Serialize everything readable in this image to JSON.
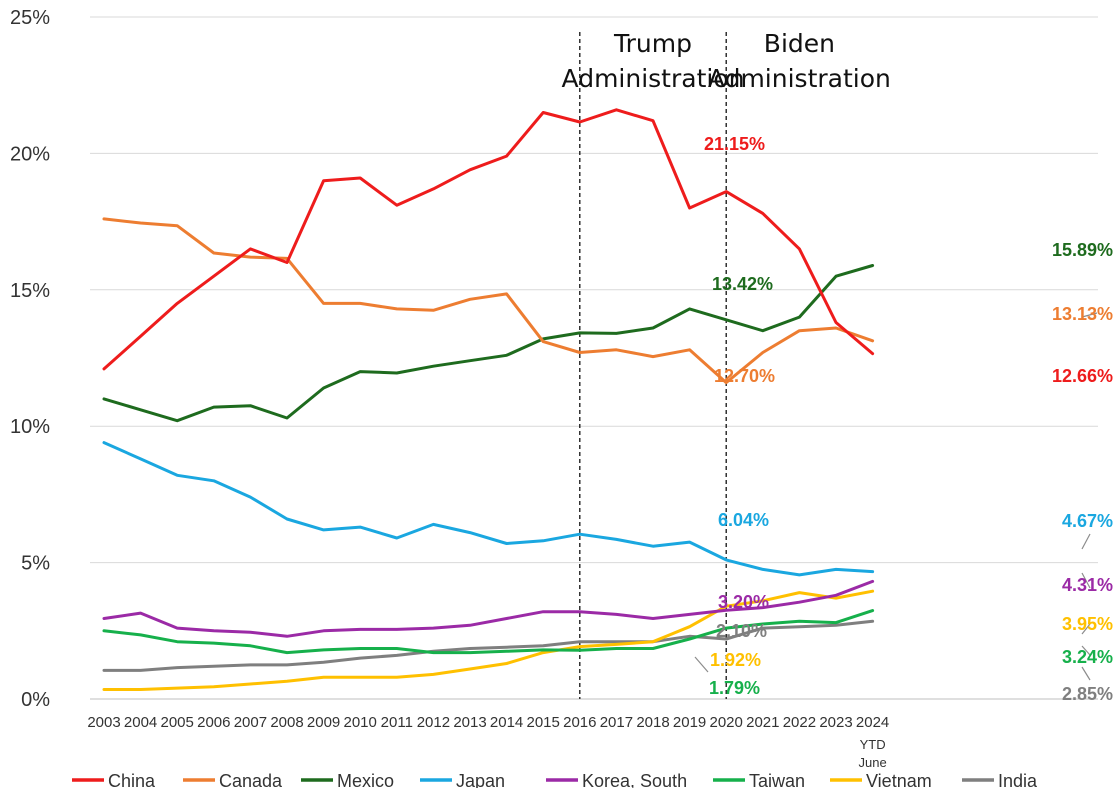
{
  "chart_data": {
    "type": "line",
    "title": "",
    "xlabel": "",
    "ylabel": "",
    "ylim": [
      0,
      25
    ],
    "grid": "horizontal",
    "legend_position": "bottom",
    "y_ticks": [
      "0%",
      "5%",
      "10%",
      "15%",
      "20%",
      "25%"
    ],
    "y_tick_values": [
      0,
      5,
      10,
      15,
      20,
      25
    ],
    "categories": [
      "2003",
      "2004",
      "2005",
      "2006",
      "2007",
      "2008",
      "2009",
      "2010",
      "2011",
      "2012",
      "2013",
      "2014",
      "2015",
      "2016",
      "2017",
      "2018",
      "2019",
      "2020",
      "2021",
      "2022",
      "2023",
      "2024"
    ],
    "last_category_sub": [
      "YTD",
      "June"
    ],
    "series": [
      {
        "name": "China",
        "color": "#ee1c1c",
        "values": [
          12.1,
          13.3,
          14.5,
          15.5,
          16.5,
          16.0,
          19.0,
          19.1,
          18.1,
          18.7,
          19.4,
          19.9,
          21.5,
          21.15,
          21.6,
          21.2,
          18.0,
          18.6,
          17.8,
          16.5,
          13.8,
          12.66
        ]
      },
      {
        "name": "Canada",
        "color": "#ed7d31",
        "values": [
          17.6,
          17.45,
          17.35,
          16.35,
          16.2,
          16.15,
          14.5,
          14.5,
          14.3,
          14.25,
          14.65,
          14.85,
          13.1,
          12.7,
          12.8,
          12.55,
          12.8,
          11.6,
          12.7,
          13.5,
          13.6,
          13.13
        ]
      },
      {
        "name": "Mexico",
        "color": "#1e6b1e",
        "values": [
          11.0,
          10.6,
          10.2,
          10.7,
          10.75,
          10.3,
          11.4,
          12.0,
          11.95,
          12.2,
          12.4,
          12.6,
          13.2,
          13.42,
          13.4,
          13.6,
          14.3,
          13.9,
          13.5,
          14.0,
          15.5,
          15.89
        ]
      },
      {
        "name": "Japan",
        "color": "#1aa7e0",
        "values": [
          9.4,
          8.8,
          8.2,
          8.0,
          7.4,
          6.6,
          6.2,
          6.3,
          5.9,
          6.4,
          6.1,
          5.7,
          5.8,
          6.04,
          5.85,
          5.6,
          5.75,
          5.1,
          4.75,
          4.55,
          4.75,
          4.67
        ]
      },
      {
        "name": "Korea, South",
        "color": "#9b2aa6",
        "values": [
          2.95,
          3.15,
          2.6,
          2.5,
          2.45,
          2.3,
          2.5,
          2.55,
          2.55,
          2.6,
          2.7,
          2.95,
          3.2,
          3.2,
          3.1,
          2.95,
          3.1,
          3.25,
          3.35,
          3.55,
          3.8,
          4.31
        ]
      },
      {
        "name": "Taiwan",
        "color": "#16b04b",
        "values": [
          2.5,
          2.35,
          2.1,
          2.05,
          1.95,
          1.7,
          1.8,
          1.85,
          1.85,
          1.7,
          1.7,
          1.75,
          1.8,
          1.79,
          1.85,
          1.85,
          2.2,
          2.6,
          2.75,
          2.85,
          2.8,
          3.24
        ]
      },
      {
        "name": "Vietnam",
        "color": "#ffc000",
        "values": [
          0.35,
          0.35,
          0.4,
          0.45,
          0.55,
          0.65,
          0.8,
          0.8,
          0.8,
          0.9,
          1.1,
          1.3,
          1.7,
          1.92,
          2.0,
          2.1,
          2.65,
          3.4,
          3.6,
          3.9,
          3.7,
          3.95
        ]
      },
      {
        "name": "India",
        "color": "#7f7f7f",
        "values": [
          1.05,
          1.05,
          1.15,
          1.2,
          1.25,
          1.25,
          1.35,
          1.5,
          1.6,
          1.75,
          1.85,
          1.9,
          1.95,
          2.1,
          2.1,
          2.1,
          2.3,
          2.2,
          2.6,
          2.65,
          2.7,
          2.85
        ]
      }
    ],
    "annotations": [
      {
        "text": "21.15%",
        "series": "China",
        "color": "#ee1c1c"
      },
      {
        "text": "12.66%",
        "series": "China",
        "color": "#ee1c1c"
      },
      {
        "text": "12.70%",
        "series": "Canada",
        "color": "#ed7d31"
      },
      {
        "text": "13.13%",
        "series": "Canada",
        "color": "#ed7d31"
      },
      {
        "text": "13.42%",
        "series": "Mexico",
        "color": "#1e6b1e"
      },
      {
        "text": "15.89%",
        "series": "Mexico",
        "color": "#1e6b1e"
      },
      {
        "text": "6.04%",
        "series": "Japan",
        "color": "#1aa7e0"
      },
      {
        "text": "4.67%",
        "series": "Japan",
        "color": "#1aa7e0"
      },
      {
        "text": "3.20%",
        "series": "Korea, South",
        "color": "#9b2aa6"
      },
      {
        "text": "4.31%",
        "series": "Korea, South",
        "color": "#9b2aa6"
      },
      {
        "text": "2.10%",
        "series": "India",
        "color": "#7f7f7f"
      },
      {
        "text": "2.85%",
        "series": "India",
        "color": "#7f7f7f"
      },
      {
        "text": "1.92%",
        "series": "Vietnam",
        "color": "#ffc000"
      },
      {
        "text": "3.95%",
        "series": "Vietnam",
        "color": "#ffc000"
      },
      {
        "text": "1.79%",
        "series": "Taiwan",
        "color": "#16b04b"
      },
      {
        "text": "3.24%",
        "series": "Taiwan",
        "color": "#16b04b"
      }
    ],
    "periods": [
      {
        "lines": [
          "Trump",
          "Administration"
        ],
        "start": "2016",
        "end": "2020"
      },
      {
        "lines": [
          "Biden",
          "Administration"
        ],
        "start": "2020",
        "end": "2024"
      }
    ]
  }
}
